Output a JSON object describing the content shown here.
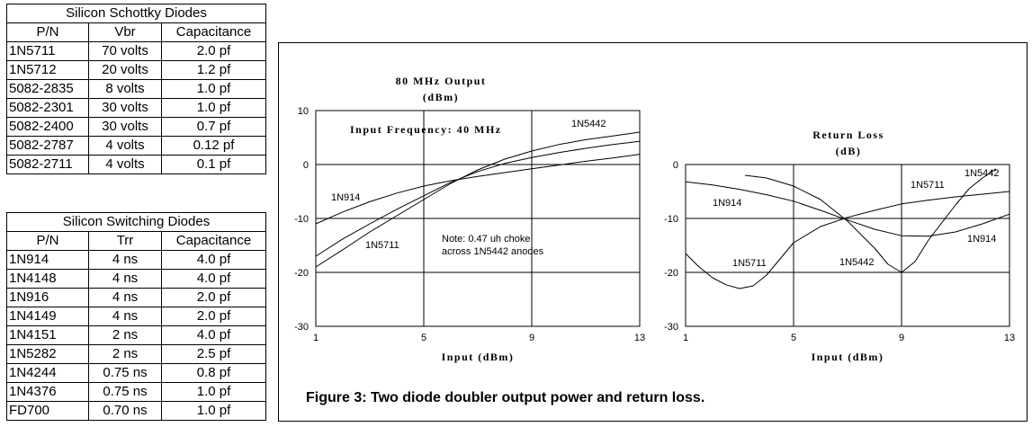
{
  "schottky_table": {
    "title": "Silicon Schottky Diodes",
    "headers": [
      "P/N",
      "Vbr",
      "Capacitance"
    ],
    "rows": [
      [
        "1N5711",
        "70 volts",
        "2.0 pf"
      ],
      [
        "1N5712",
        "20 volts",
        "1.2 pf"
      ],
      [
        "5082-2835",
        "8 volts",
        "1.0 pf"
      ],
      [
        "5082-2301",
        "30 volts",
        "1.0 pf"
      ],
      [
        "5082-2400",
        "30 volts",
        "0.7 pf"
      ],
      [
        "5082-2787",
        "4 volts",
        "0.12 pf"
      ],
      [
        "5082-2711",
        "4 volts",
        "0.1 pf"
      ]
    ]
  },
  "switching_table": {
    "title": "Silicon Switching Diodes",
    "headers": [
      "P/N",
      "Trr",
      "Capacitance"
    ],
    "rows": [
      [
        "1N914",
        "4 ns",
        "4.0 pf"
      ],
      [
        "1N4148",
        "4 ns",
        "4.0 pf"
      ],
      [
        "1N916",
        "4 ns",
        "2.0 pf"
      ],
      [
        "1N4149",
        "4 ns",
        "2.0 pf"
      ],
      [
        "1N4151",
        "2 ns",
        "4.0 pf"
      ],
      [
        "1N5282",
        "2 ns",
        "2.5 pf"
      ],
      [
        "1N4244",
        "0.75 ns",
        "0.8 pf"
      ],
      [
        "1N4376",
        "0.75 ns",
        "1.0 pf"
      ],
      [
        "FD700",
        "0.70 ns",
        "1.0 pf"
      ]
    ]
  },
  "caption": "Figure 3: Two diode doubler output power and return loss.",
  "chart_data": [
    {
      "type": "line",
      "title": "80 MHz Output",
      "subtitle": "(dBm)",
      "xlabel": "Input (dBm)",
      "ylabel": "",
      "xlim": [
        1,
        13
      ],
      "ylim": [
        -30,
        10
      ],
      "xticks": [
        "1",
        "5",
        "9",
        "13"
      ],
      "yticks": [
        "10",
        "0",
        "-10",
        "-20",
        "-30"
      ],
      "grid": true,
      "annotations": [
        "Input Frequency: 40 MHz",
        "Note: 0.47 uh choke",
        "across 1N5442 anodes"
      ],
      "series": [
        {
          "name": "1N5442",
          "x": [
            1,
            2,
            3,
            4,
            5,
            6,
            7,
            8,
            9,
            10,
            11,
            12,
            13
          ],
          "y": [
            -19,
            -15.8,
            -12.5,
            -9.5,
            -6.5,
            -3.5,
            -1,
            1,
            2.5,
            3.7,
            4.6,
            5.3,
            6
          ]
        },
        {
          "name": "1N914",
          "x": [
            1,
            2,
            3,
            4,
            5,
            6,
            7,
            8,
            9,
            10,
            11,
            12,
            13
          ],
          "y": [
            -17,
            -13.8,
            -11,
            -8.3,
            -5.8,
            -3.3,
            -1.3,
            0.2,
            1.3,
            2.2,
            3,
            3.7,
            4.3
          ]
        },
        {
          "name": "1N5711",
          "x": [
            1,
            2,
            3,
            4,
            5,
            6,
            7,
            8,
            9,
            10,
            11,
            12,
            13
          ],
          "y": [
            -11,
            -8.8,
            -6.9,
            -5.3,
            -4,
            -3,
            -2.2,
            -1.5,
            -0.8,
            -0.1,
            0.6,
            1.2,
            1.9
          ]
        }
      ]
    },
    {
      "type": "line",
      "title": "Return Loss",
      "subtitle": "(dB)",
      "xlabel": "Input (dBm)",
      "ylabel": "",
      "xlim": [
        1,
        13
      ],
      "ylim": [
        -30,
        0
      ],
      "xticks": [
        "1",
        "5",
        "9",
        "13"
      ],
      "yticks": [
        "0",
        "-10",
        "-20",
        "-30"
      ],
      "grid": true,
      "series": [
        {
          "name": "1N5442",
          "x": [
            3.2,
            4,
            5,
            6,
            7,
            8,
            8.5,
            9,
            9.5,
            10,
            11,
            11.5,
            12,
            12.5
          ],
          "y": [
            -2,
            -2.5,
            -4,
            -6.5,
            -10.5,
            -15.5,
            -18.5,
            -20,
            -18,
            -14,
            -7.5,
            -4.5,
            -2.5,
            -0.8
          ]
        },
        {
          "name": "1N914",
          "x": [
            1,
            2,
            3,
            4,
            5,
            6,
            7,
            8,
            9,
            10,
            11,
            12,
            13
          ],
          "y": [
            -3.2,
            -3.8,
            -4.6,
            -5.6,
            -6.8,
            -8.5,
            -10.3,
            -12,
            -13.2,
            -13.3,
            -12.5,
            -11,
            -9.2
          ]
        },
        {
          "name": "1N5711",
          "x": [
            1,
            1.5,
            2,
            2.5,
            3,
            3.5,
            4,
            5,
            6,
            7,
            8,
            9,
            10,
            11,
            12,
            13
          ],
          "y": [
            -16.5,
            -19,
            -21,
            -22.3,
            -23,
            -22.5,
            -20.5,
            -14.5,
            -11.5,
            -9.8,
            -8.5,
            -7.3,
            -6.6,
            -6,
            -5.5,
            -5
          ]
        }
      ]
    }
  ]
}
